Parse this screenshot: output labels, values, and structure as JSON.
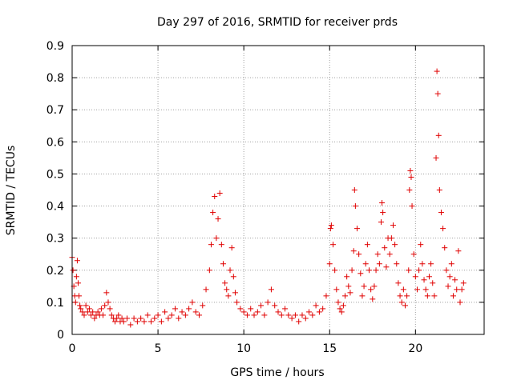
{
  "chart_data": {
    "type": "scatter",
    "title": "Day 297 of 2016, SRMTID for receiver prds",
    "xlabel": "GPS time / hours",
    "ylabel": "SRMTID / TECUs",
    "xlim": [
      0,
      24
    ],
    "ylim": [
      0,
      0.9
    ],
    "xticks": [
      0,
      5,
      10,
      15,
      20
    ],
    "xtick_labels": [
      "0",
      "5",
      "10",
      "15",
      "20"
    ],
    "yticks": [
      0,
      0.1,
      0.2,
      0.3,
      0.4,
      0.5,
      0.6,
      0.7,
      0.8,
      0.9
    ],
    "ytick_labels": [
      "0",
      "0.1",
      "0.2",
      "0.3",
      "0.4",
      "0.5",
      "0.6",
      "0.7",
      "0.8",
      "0.9"
    ],
    "grid": true,
    "marker": "+",
    "color": "#e00000",
    "series": [
      {
        "name": "SRMTID",
        "x": [
          0.0,
          0.05,
          0.1,
          0.15,
          0.2,
          0.25,
          0.3,
          0.35,
          0.4,
          0.45,
          0.5,
          0.6,
          0.7,
          0.8,
          0.9,
          1.0,
          1.1,
          1.2,
          1.3,
          1.4,
          1.5,
          1.6,
          1.7,
          1.8,
          1.9,
          2.0,
          2.1,
          2.2,
          2.3,
          2.4,
          2.5,
          2.6,
          2.7,
          2.8,
          2.9,
          3.0,
          3.2,
          3.4,
          3.6,
          3.8,
          4.0,
          4.2,
          4.4,
          4.6,
          4.8,
          5.0,
          5.2,
          5.4,
          5.6,
          5.8,
          6.0,
          6.2,
          6.4,
          6.6,
          6.8,
          7.0,
          7.2,
          7.4,
          7.6,
          7.8,
          8.0,
          8.1,
          8.2,
          8.3,
          8.4,
          8.5,
          8.6,
          8.7,
          8.8,
          8.9,
          9.0,
          9.1,
          9.2,
          9.3,
          9.4,
          9.5,
          9.6,
          9.8,
          10.0,
          10.2,
          10.4,
          10.6,
          10.8,
          11.0,
          11.2,
          11.4,
          11.6,
          11.8,
          12.0,
          12.2,
          12.4,
          12.6,
          12.8,
          13.0,
          13.2,
          13.4,
          13.6,
          13.8,
          14.0,
          14.2,
          14.4,
          14.6,
          14.8,
          15.0,
          15.05,
          15.1,
          15.2,
          15.3,
          15.4,
          15.5,
          15.6,
          15.7,
          15.8,
          15.9,
          16.0,
          16.1,
          16.2,
          16.3,
          16.4,
          16.45,
          16.5,
          16.6,
          16.7,
          16.8,
          16.9,
          17.0,
          17.1,
          17.2,
          17.3,
          17.4,
          17.5,
          17.6,
          17.7,
          17.8,
          17.9,
          18.0,
          18.05,
          18.1,
          18.2,
          18.3,
          18.4,
          18.5,
          18.6,
          18.7,
          18.8,
          18.9,
          19.0,
          19.1,
          19.2,
          19.3,
          19.4,
          19.5,
          19.6,
          19.65,
          19.7,
          19.75,
          19.8,
          19.9,
          20.0,
          20.1,
          20.2,
          20.3,
          20.4,
          20.5,
          20.6,
          20.7,
          20.8,
          20.9,
          21.0,
          21.1,
          21.2,
          21.25,
          21.3,
          21.35,
          21.4,
          21.5,
          21.6,
          21.7,
          21.8,
          21.9,
          22.0,
          22.1,
          22.2,
          22.3,
          22.4,
          22.5,
          22.6,
          22.7,
          22.8
        ],
        "y": [
          0.24,
          0.2,
          0.15,
          0.12,
          0.1,
          0.18,
          0.23,
          0.16,
          0.12,
          0.09,
          0.08,
          0.07,
          0.06,
          0.09,
          0.07,
          0.08,
          0.06,
          0.07,
          0.05,
          0.06,
          0.07,
          0.06,
          0.08,
          0.06,
          0.09,
          0.13,
          0.1,
          0.08,
          0.06,
          0.05,
          0.04,
          0.05,
          0.06,
          0.04,
          0.05,
          0.04,
          0.05,
          0.03,
          0.05,
          0.04,
          0.05,
          0.04,
          0.06,
          0.04,
          0.05,
          0.06,
          0.04,
          0.07,
          0.05,
          0.06,
          0.08,
          0.05,
          0.07,
          0.06,
          0.08,
          0.1,
          0.07,
          0.06,
          0.09,
          0.14,
          0.2,
          0.28,
          0.38,
          0.43,
          0.3,
          0.36,
          0.44,
          0.28,
          0.22,
          0.16,
          0.14,
          0.12,
          0.2,
          0.27,
          0.18,
          0.13,
          0.1,
          0.08,
          0.07,
          0.06,
          0.08,
          0.06,
          0.07,
          0.09,
          0.06,
          0.1,
          0.14,
          0.09,
          0.07,
          0.06,
          0.08,
          0.06,
          0.05,
          0.06,
          0.04,
          0.06,
          0.05,
          0.07,
          0.06,
          0.09,
          0.07,
          0.08,
          0.12,
          0.22,
          0.33,
          0.34,
          0.28,
          0.2,
          0.14,
          0.1,
          0.08,
          0.07,
          0.09,
          0.12,
          0.18,
          0.15,
          0.13,
          0.2,
          0.26,
          0.45,
          0.4,
          0.33,
          0.25,
          0.19,
          0.12,
          0.15,
          0.22,
          0.28,
          0.2,
          0.14,
          0.11,
          0.15,
          0.2,
          0.25,
          0.22,
          0.35,
          0.41,
          0.38,
          0.27,
          0.21,
          0.3,
          0.25,
          0.3,
          0.34,
          0.28,
          0.22,
          0.16,
          0.12,
          0.1,
          0.14,
          0.09,
          0.12,
          0.2,
          0.45,
          0.51,
          0.49,
          0.4,
          0.25,
          0.18,
          0.14,
          0.2,
          0.28,
          0.22,
          0.17,
          0.14,
          0.12,
          0.18,
          0.22,
          0.16,
          0.12,
          0.55,
          0.82,
          0.75,
          0.62,
          0.45,
          0.38,
          0.33,
          0.27,
          0.2,
          0.15,
          0.18,
          0.22,
          0.12,
          0.17,
          0.14,
          0.26,
          0.1,
          0.14,
          0.16
        ]
      }
    ]
  }
}
